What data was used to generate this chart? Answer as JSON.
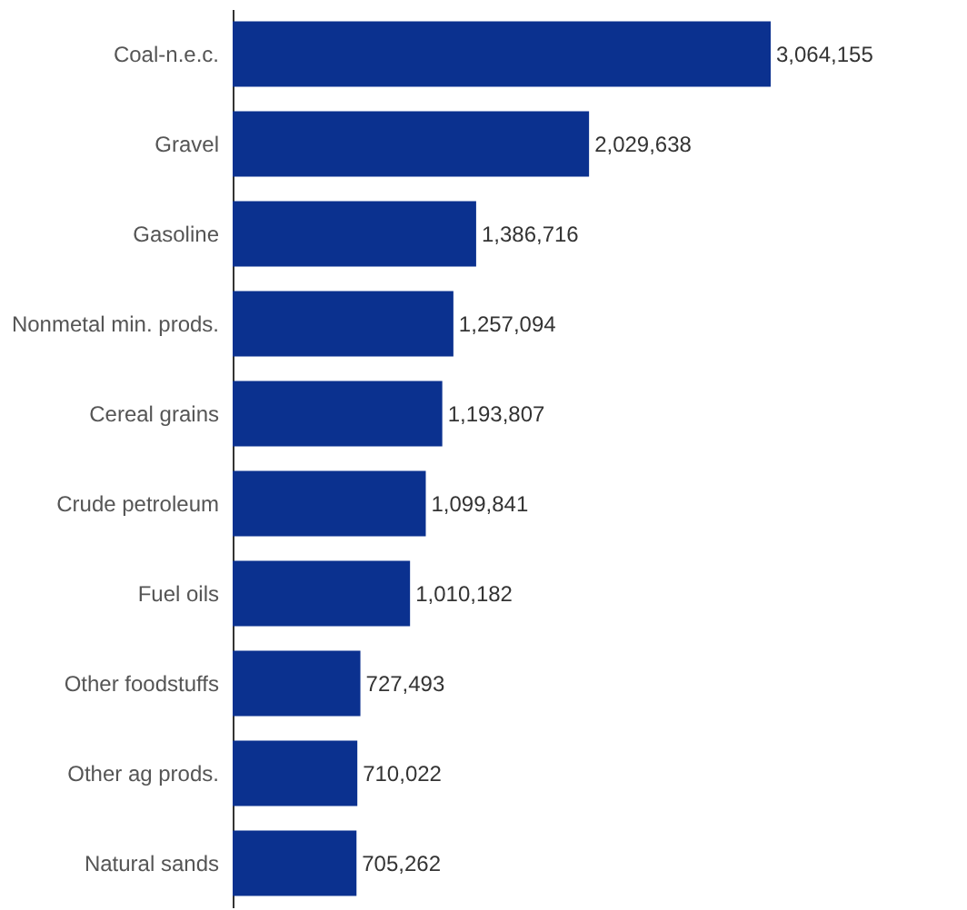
{
  "chart_data": {
    "type": "bar",
    "orientation": "horizontal",
    "categories": [
      "Coal-n.e.c.",
      "Gravel",
      "Gasoline",
      "Nonmetal min. prods.",
      "Cereal grains",
      "Crude petroleum",
      "Fuel oils",
      "Other foodstuffs",
      "Other ag prods.",
      "Natural sands"
    ],
    "values": [
      3064155,
      2029638,
      1386716,
      1257094,
      1193807,
      1099841,
      1010182,
      727493,
      710022,
      705262
    ],
    "value_labels": [
      "3,064,155",
      "2,029,638",
      "1,386,716",
      "1,257,094",
      "1,193,807",
      "1,099,841",
      "1,010,182",
      "727,493",
      "710,022",
      "705,262"
    ],
    "color": "#0b318f",
    "tick_labels": "y"
  }
}
